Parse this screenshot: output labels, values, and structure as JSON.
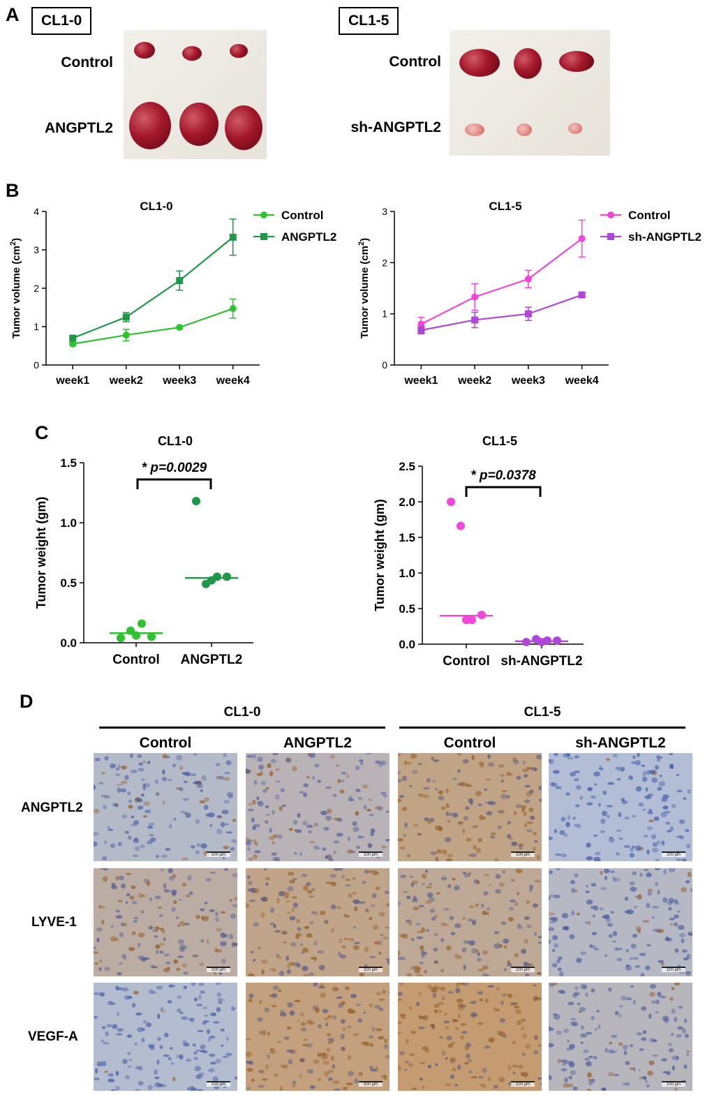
{
  "panels": {
    "a": "A",
    "b": "B",
    "c": "C",
    "d": "D"
  },
  "photos": {
    "left": {
      "cell_line": "CL1-0",
      "top_label": "Control",
      "bottom_label": "ANGPTL2"
    },
    "right": {
      "cell_line": "CL1-5",
      "top_label": "Control",
      "bottom_label": "sh-ANGPTL2"
    }
  },
  "colors": {
    "cl10_control": "#2fc12f",
    "cl10_treat": "#1e9748",
    "cl15_control": "#f047d8",
    "cl15_treat": "#b046d7"
  },
  "chart_data": [
    {
      "type": "line",
      "title": "CL1-0",
      "xlabel": "",
      "ylabel": "Tumor volume (cm2)",
      "ylabel_main": "Tumor volume (cm",
      "ylabel_sup": "2",
      "ylabel_end": ")",
      "categories": [
        "week1",
        "week2",
        "week3",
        "week4"
      ],
      "ylim": [
        0,
        4
      ],
      "yticks": [
        "0",
        "1",
        "2",
        "3",
        "4"
      ],
      "series": [
        {
          "name": "Control",
          "marker": "circle",
          "values": [
            0.55,
            0.78,
            0.98,
            1.47
          ],
          "err": [
            0.05,
            0.15,
            0.03,
            0.25
          ]
        },
        {
          "name": "ANGPTL2",
          "marker": "square",
          "values": [
            0.7,
            1.25,
            2.2,
            3.33
          ],
          "err": [
            0.06,
            0.12,
            0.25,
            0.47
          ]
        }
      ]
    },
    {
      "type": "line",
      "title": "CL1-5",
      "xlabel": "",
      "ylabel": "Tumor volume (cm2)",
      "ylabel_main": "Tumor volume (cm",
      "ylabel_sup": "2",
      "ylabel_end": ")",
      "categories": [
        "week1",
        "week2",
        "week3",
        "week4"
      ],
      "ylim": [
        0,
        3
      ],
      "yticks": [
        "0",
        "1",
        "2",
        "3"
      ],
      "series": [
        {
          "name": "Control",
          "marker": "circle",
          "values": [
            0.8,
            1.33,
            1.68,
            2.47
          ],
          "err": [
            0.13,
            0.26,
            0.17,
            0.36
          ]
        },
        {
          "name": "sh-ANGPTL2",
          "marker": "square",
          "values": [
            0.68,
            0.88,
            1.0,
            1.37
          ],
          "err": [
            0.07,
            0.15,
            0.13,
            0.05
          ]
        }
      ]
    },
    {
      "type": "scatter",
      "title": "CL1-0",
      "ylabel": "Tumor weight (gm)",
      "categories": [
        "Control",
        "ANGPTL2"
      ],
      "ylim": [
        0,
        1.5
      ],
      "yticks": [
        "0.0",
        "0.5",
        "1.0",
        "1.5"
      ],
      "points": [
        [
          0.04,
          0.1,
          0.16,
          0.05,
          0.06
        ],
        [
          1.18,
          0.49,
          0.55,
          0.55,
          0.52
        ]
      ],
      "medians": [
        0.08,
        0.54
      ],
      "annotation": "* p=0.0029"
    },
    {
      "type": "scatter",
      "title": "CL1-5",
      "ylabel": "Tumor weight (gm)",
      "categories": [
        "Control",
        "sh-ANGPTL2"
      ],
      "ylim": [
        0,
        2.5
      ],
      "yticks": [
        "0.0",
        "0.5",
        "1.0",
        "1.5",
        "2.0",
        "2.5"
      ],
      "points": [
        [
          2.0,
          1.66,
          0.34,
          0.41,
          0.34
        ],
        [
          0.03,
          0.07,
          0.05,
          0.05,
          0.03
        ]
      ],
      "medians": [
        0.4,
        0.04
      ],
      "annotation": "* p=0.0378"
    }
  ],
  "ihc": {
    "groups": [
      "CL1-0",
      "CL1-5"
    ],
    "columns": [
      "Control",
      "ANGPTL2",
      "Control",
      "sh-ANGPTL2"
    ],
    "rows": [
      "ANGPTL2",
      "LYVE-1",
      "VEGF-A"
    ],
    "scale_label": "100 μm",
    "stain_levels": [
      [
        0.15,
        0.3,
        0.7,
        0.05
      ],
      [
        0.45,
        0.65,
        0.55,
        0.2
      ],
      [
        0.1,
        0.75,
        0.85,
        0.25
      ]
    ]
  }
}
